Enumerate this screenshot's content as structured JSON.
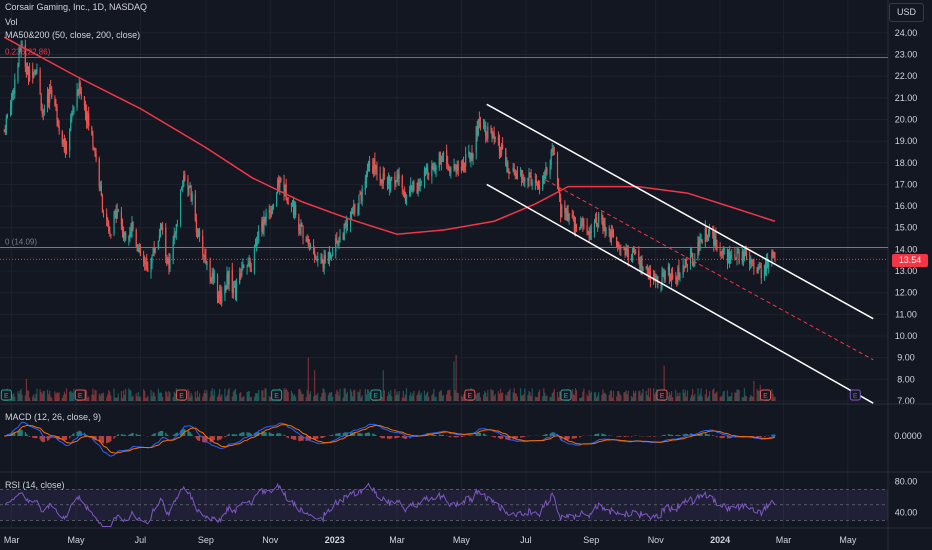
{
  "header": {
    "symbol_line": "Corsair Gaming, Inc., 1D, NASDAQ",
    "vol_label": "Vol",
    "ma_label": "MA50&200 (50, close, 200, close)",
    "macd_label": "MACD (12, 26, close, 9)",
    "rsi_label": "RSI (14, close)",
    "currency_button": "USD"
  },
  "colors": {
    "background": "#131722",
    "up": "#26a69a",
    "down": "#ef5350",
    "ma": "#f23645",
    "macd": "#2962ff",
    "signal": "#ff6d00",
    "rsi": "#7e57c2",
    "grid": "#1e222d",
    "text": "#d1d4dc"
  },
  "chart_data": [
    {
      "type": "candlestick",
      "x_labels": [
        "Mar",
        "May",
        "Jul",
        "Sep",
        "Nov",
        "2023",
        "Mar",
        "May",
        "Jul",
        "Sep",
        "Nov",
        "2024",
        "Mar",
        "May"
      ],
      "y_ticks": [
        "24.00",
        "23.00",
        "22.00",
        "21.00",
        "20.00",
        "19.00",
        "18.00",
        "17.00",
        "16.00",
        "15.00",
        "14.00",
        "13.00",
        "12.00",
        "11.00",
        "10.00",
        "9.00",
        "8.00",
        "7.00"
      ],
      "ylim": [
        7,
        24.5
      ],
      "last_price": "13.54",
      "anchors": [
        [
          "2022-02-22",
          19.5
        ],
        [
          "2022-03-03",
          21.5
        ],
        [
          "2022-03-10",
          23.5
        ],
        [
          "2022-03-17",
          22.0
        ],
        [
          "2022-03-24",
          22.5
        ],
        [
          "2022-03-31",
          20.0
        ],
        [
          "2022-04-07",
          21.5
        ],
        [
          "2022-04-14",
          20.0
        ],
        [
          "2022-04-21",
          18.5
        ],
        [
          "2022-04-28",
          20.5
        ],
        [
          "2022-05-05",
          21.5
        ],
        [
          "2022-05-12",
          20.0
        ],
        [
          "2022-05-19",
          18.5
        ],
        [
          "2022-05-26",
          16.0
        ],
        [
          "2022-06-02",
          14.5
        ],
        [
          "2022-06-09",
          16.0
        ],
        [
          "2022-06-16",
          14.5
        ],
        [
          "2022-06-23",
          15.2
        ],
        [
          "2022-06-30",
          13.8
        ],
        [
          "2022-07-07",
          13.0
        ],
        [
          "2022-07-14",
          14.0
        ],
        [
          "2022-07-21",
          15.0
        ],
        [
          "2022-07-28",
          13.0
        ],
        [
          "2022-08-04",
          15.0
        ],
        [
          "2022-08-11",
          17.5
        ],
        [
          "2022-08-18",
          16.5
        ],
        [
          "2022-08-25",
          14.5
        ],
        [
          "2022-09-01",
          13.5
        ],
        [
          "2022-09-08",
          12.5
        ],
        [
          "2022-09-15",
          11.8
        ],
        [
          "2022-09-22",
          12.8
        ],
        [
          "2022-09-29",
          12.0
        ],
        [
          "2022-10-06",
          13.5
        ],
        [
          "2022-10-13",
          13.0
        ],
        [
          "2022-10-20",
          14.5
        ],
        [
          "2022-10-27",
          15.5
        ],
        [
          "2022-11-03",
          16.0
        ],
        [
          "2022-11-10",
          17.2
        ],
        [
          "2022-11-17",
          16.5
        ],
        [
          "2022-11-24",
          15.8
        ],
        [
          "2022-12-01",
          14.8
        ],
        [
          "2022-12-08",
          14.2
        ],
        [
          "2022-12-15",
          13.5
        ],
        [
          "2022-12-22",
          13.4
        ],
        [
          "2022-12-29",
          14.0
        ],
        [
          "2023-01-05",
          14.5
        ],
        [
          "2023-01-12",
          15.0
        ],
        [
          "2023-01-19",
          15.8
        ],
        [
          "2023-01-26",
          16.5
        ],
        [
          "2023-02-02",
          18.0
        ],
        [
          "2023-02-09",
          17.8
        ],
        [
          "2023-02-16",
          17.2
        ],
        [
          "2023-02-23",
          17.0
        ],
        [
          "2023-03-02",
          17.3
        ],
        [
          "2023-03-09",
          16.5
        ],
        [
          "2023-03-16",
          17.0
        ],
        [
          "2023-03-23",
          16.8
        ],
        [
          "2023-03-30",
          17.8
        ],
        [
          "2023-04-06",
          17.8
        ],
        [
          "2023-04-13",
          18.5
        ],
        [
          "2023-04-20",
          17.8
        ],
        [
          "2023-04-27",
          17.8
        ],
        [
          "2023-05-04",
          18.0
        ],
        [
          "2023-05-11",
          18.5
        ],
        [
          "2023-05-18",
          20.0
        ],
        [
          "2023-05-25",
          19.5
        ],
        [
          "2023-06-01",
          19.0
        ],
        [
          "2023-06-08",
          18.5
        ],
        [
          "2023-06-15",
          17.5
        ],
        [
          "2023-06-22",
          17.5
        ],
        [
          "2023-06-29",
          17.2
        ],
        [
          "2023-07-06",
          17.3
        ],
        [
          "2023-07-13",
          16.8
        ],
        [
          "2023-07-20",
          17.5
        ],
        [
          "2023-07-27",
          18.5
        ],
        [
          "2023-08-03",
          15.8
        ],
        [
          "2023-08-10",
          15.5
        ],
        [
          "2023-08-17",
          15.0
        ],
        [
          "2023-08-24",
          15.2
        ],
        [
          "2023-08-31",
          14.8
        ],
        [
          "2023-09-07",
          15.5
        ],
        [
          "2023-09-14",
          14.8
        ],
        [
          "2023-09-21",
          14.5
        ],
        [
          "2023-09-28",
          14.3
        ],
        [
          "2023-10-05",
          13.8
        ],
        [
          "2023-10-12",
          13.6
        ],
        [
          "2023-10-19",
          13.2
        ],
        [
          "2023-10-26",
          12.7
        ],
        [
          "2023-11-02",
          12.5
        ],
        [
          "2023-11-09",
          12.8
        ],
        [
          "2023-11-16",
          12.9
        ],
        [
          "2023-11-23",
          12.8
        ],
        [
          "2023-11-30",
          13.5
        ],
        [
          "2023-12-07",
          13.6
        ],
        [
          "2023-12-14",
          14.5
        ],
        [
          "2023-12-21",
          14.9
        ],
        [
          "2023-12-28",
          14.2
        ],
        [
          "2024-01-04",
          14.0
        ],
        [
          "2024-01-11",
          13.5
        ],
        [
          "2024-01-18",
          13.6
        ],
        [
          "2024-01-25",
          13.8
        ],
        [
          "2024-02-01",
          13.5
        ],
        [
          "2024-02-08",
          12.9
        ],
        [
          "2024-02-15",
          13.3
        ],
        [
          "2024-02-19",
          13.7
        ],
        [
          "2024-02-22",
          13.54
        ]
      ],
      "ma200": [
        [
          "2022-02-22",
          23.8
        ],
        [
          "2022-05-01",
          22.0
        ],
        [
          "2022-07-01",
          20.5
        ],
        [
          "2022-09-01",
          18.7
        ],
        [
          "2022-10-15",
          17.3
        ],
        [
          "2022-12-01",
          16.2
        ],
        [
          "2023-01-15",
          15.4
        ],
        [
          "2023-03-01",
          14.7
        ],
        [
          "2023-04-15",
          14.9
        ],
        [
          "2023-06-01",
          15.3
        ],
        [
          "2023-07-10",
          16.1
        ],
        [
          "2023-08-10",
          16.9
        ],
        [
          "2023-09-10",
          16.9
        ],
        [
          "2023-10-15",
          16.9
        ],
        [
          "2023-12-01",
          16.6
        ],
        [
          "2024-01-15",
          15.9
        ],
        [
          "2024-02-22",
          15.3
        ]
      ],
      "fib_levels": [
        {
          "label": "0.236(22.86)",
          "value": 22.86
        },
        {
          "label": "0 (14.09)",
          "value": 14.09
        }
      ],
      "channel": {
        "upper": [
          [
            "2023-05-25",
            20.7
          ],
          [
            "2024-05-25",
            10.8
          ]
        ],
        "lower": [
          [
            "2023-05-25",
            17.0
          ],
          [
            "2024-05-25",
            6.9
          ]
        ],
        "middle": [
          [
            "2023-07-20",
            17.2
          ],
          [
            "2024-05-25",
            8.9
          ]
        ]
      },
      "earnings_markers": [
        {
          "date": "2022-02-24",
          "kind": "E"
        },
        {
          "date": "2022-05-05",
          "kind": "E"
        },
        {
          "date": "2022-08-09",
          "kind": "E"
        },
        {
          "date": "2022-11-07",
          "kind": "E"
        },
        {
          "date": "2023-02-09",
          "kind": "E"
        },
        {
          "date": "2023-05-09",
          "kind": "E"
        },
        {
          "date": "2023-08-08",
          "kind": "E"
        },
        {
          "date": "2023-11-07",
          "kind": "E"
        },
        {
          "date": "2024-02-13",
          "kind": "E"
        },
        {
          "date": "2024-05-08",
          "kind": "E"
        }
      ],
      "macd": {
        "value_label": "0.0000"
      },
      "rsi": {
        "ticks": [
          "80.00",
          "40.00"
        ]
      }
    }
  ]
}
